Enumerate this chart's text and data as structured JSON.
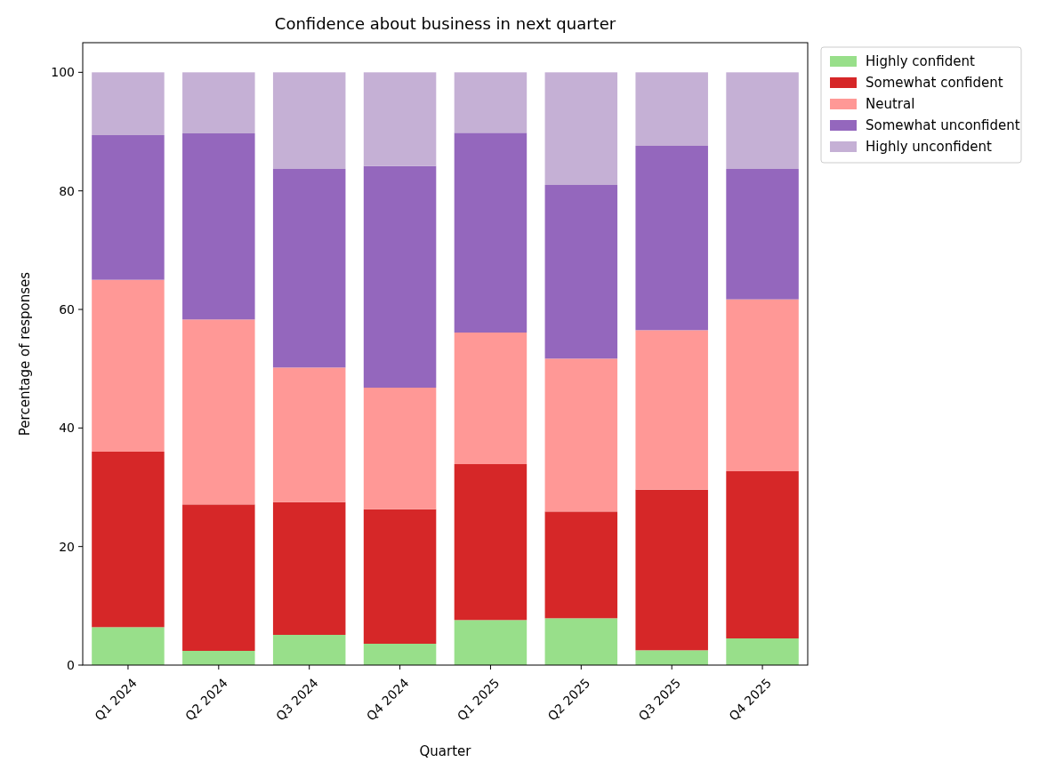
{
  "chart_data": {
    "type": "bar",
    "title": "Confidence about business in next quarter",
    "xlabel": "Quarter",
    "ylabel": "Percentage of responses",
    "categories": [
      "Q1 2024",
      "Q2 2024",
      "Q3 2024",
      "Q4 2024",
      "Q1 2025",
      "Q2 2025",
      "Q3 2025",
      "Q4 2025"
    ],
    "stacked": true,
    "ylim": [
      0,
      105
    ],
    "yticks": [
      0,
      20,
      40,
      60,
      80,
      100
    ],
    "grid": false,
    "legend": "right",
    "series": [
      {
        "name": "Highly confident",
        "color": "#98df8a",
        "values": [
          6.4,
          2.4,
          5.1,
          3.6,
          7.6,
          7.9,
          2.5,
          4.5
        ]
      },
      {
        "name": "Somewhat confident",
        "color": "#d62728",
        "values": [
          29.6,
          24.7,
          22.4,
          22.7,
          26.3,
          18.0,
          27.1,
          28.2
        ]
      },
      {
        "name": "Neutral",
        "color": "#ff9896",
        "values": [
          29.0,
          31.2,
          22.7,
          20.5,
          22.2,
          25.8,
          26.9,
          29.0
        ]
      },
      {
        "name": "Somewhat unconfident",
        "color": "#9467bd",
        "values": [
          24.4,
          31.4,
          33.5,
          37.4,
          33.7,
          29.3,
          31.1,
          22.0
        ]
      },
      {
        "name": "Highly unconfident",
        "color": "#c5b0d5",
        "values": [
          10.6,
          10.3,
          16.3,
          15.8,
          10.2,
          19.0,
          12.4,
          16.3
        ]
      }
    ]
  }
}
